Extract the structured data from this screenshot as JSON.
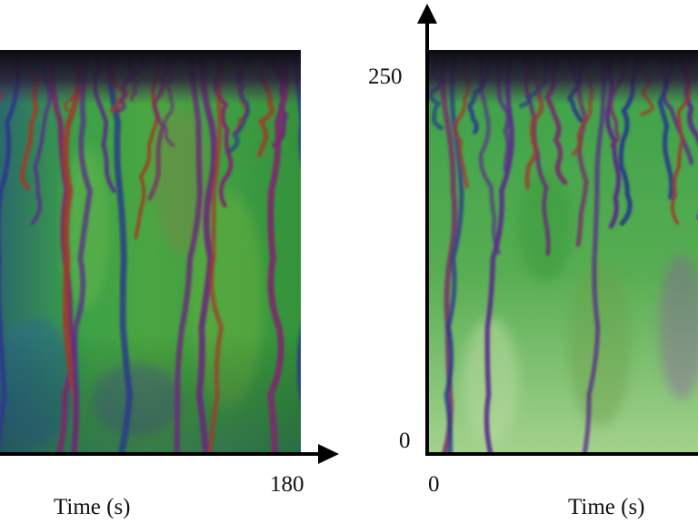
{
  "chart_data": [
    {
      "type": "heatmap",
      "panel": "left",
      "title": "",
      "xlabel": "Time (s)",
      "ylabel": "",
      "xlim": [
        0,
        180
      ],
      "x_tick_labels": [
        "180"
      ],
      "y_tick_labels": [],
      "colormap": "phase-hue (green / purple / red / blue)",
      "grid": false,
      "legend": "none"
    },
    {
      "type": "heatmap",
      "panel": "right",
      "title": "",
      "xlabel": "Time (s)",
      "ylabel": "",
      "ylim": [
        0,
        250
      ],
      "x_tick_labels": [
        "0"
      ],
      "y_tick_labels": [
        "0",
        "250"
      ],
      "colormap": "phase-hue (green / purple / red / blue)",
      "grid": false,
      "legend": "none"
    }
  ],
  "colors": {
    "axis": "#000000",
    "background_green": "#2f9a3a",
    "pale_green": "#9ccf86",
    "line_purple": "#6a2a7a",
    "line_red": "#a03a2a",
    "line_blue": "#2a3a8a",
    "top_band": "#0b0b14"
  }
}
